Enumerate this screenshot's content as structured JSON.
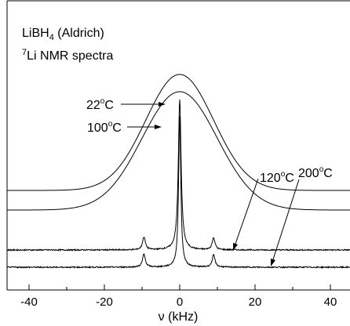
{
  "chart_data": {
    "type": "line",
    "title_line1_main": "LiBH",
    "title_line1_sub": "4",
    "title_line1_tail": " (Aldrich)",
    "title_line2_sup": "7",
    "title_line2_main": "Li NMR spectra",
    "xlabel": "ν (kHz)",
    "ylabel": "",
    "xlim": [
      -50,
      50
    ],
    "x_ticks": [
      -40,
      -20,
      0,
      20,
      40
    ],
    "x_tick_labels": [
      "-40",
      "-20",
      "0",
      "20",
      "40"
    ],
    "y_axis_shown": false,
    "grid": false,
    "series": [
      {
        "name": "22°C",
        "label_main": "22",
        "label_sup": "o",
        "label_tail": "C",
        "baseline": 0.0,
        "peaks": [
          {
            "center": 0,
            "height": 1.0,
            "width": 9.0,
            "shape": "gauss"
          }
        ],
        "noise": 0.0
      },
      {
        "name": "100°C",
        "label_main": "100",
        "label_sup": "o",
        "label_tail": "C",
        "baseline": 0.0,
        "peaks": [
          {
            "center": 0,
            "height": 1.0,
            "width": 10.0,
            "shape": "gauss"
          }
        ],
        "noise": 0.0
      },
      {
        "name": "120°C",
        "label_main": "120",
        "label_sup": "o",
        "label_tail": "C",
        "baseline": 0.0,
        "peaks": [
          {
            "center": 0,
            "height": 1.0,
            "width": 0.45,
            "shape": "lorentz"
          },
          {
            "center": -9.5,
            "height": 0.085,
            "width": 0.45,
            "shape": "lorentz"
          },
          {
            "center": 9.0,
            "height": 0.08,
            "width": 0.45,
            "shape": "lorentz"
          }
        ],
        "noise": 0.004
      },
      {
        "name": "200°C",
        "label_main": "200",
        "label_sup": "o",
        "label_tail": "C",
        "baseline": 0.0,
        "peaks": [
          {
            "center": 0,
            "height": 1.0,
            "width": 0.35,
            "shape": "lorentz"
          },
          {
            "center": -9.5,
            "height": 0.085,
            "width": 0.45,
            "shape": "lorentz"
          },
          {
            "center": 9.0,
            "height": 0.08,
            "width": 0.45,
            "shape": "lorentz"
          }
        ],
        "noise": 0.004
      }
    ]
  }
}
